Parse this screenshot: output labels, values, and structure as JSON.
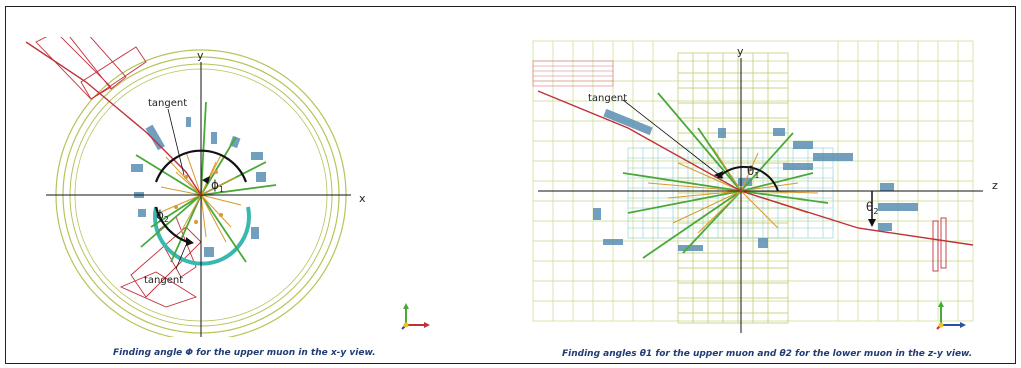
{
  "left_panel": {
    "axis_x": "x",
    "axis_y": "y",
    "tangent_top": "tangent",
    "tangent_bottom": "tangent",
    "phi1": "ϕ",
    "phi1_sub": "1",
    "phi2": "ϕ",
    "phi2_sub": "2",
    "caption": "Finding angle Φ for the upper muon in the x-y view."
  },
  "right_panel": {
    "axis_z": "z",
    "axis_y": "y",
    "tangent": "tangent",
    "theta1": "θ",
    "theta1_sub": "1",
    "theta2": "θ",
    "theta2_sub": "2",
    "caption": "Finding angles θ1 for the upper muon and θ2 for the lower muon in the z-y view."
  },
  "colors": {
    "muon": "#c0303a",
    "outer_ring": "#b8c35a",
    "inner_ring": "#3ab8b0",
    "tracks_orange": "#d79a2e",
    "tracks_green": "#4aa83a",
    "calo_blue": "#5b8fb3",
    "grid": "#c9d98a",
    "caption": "#1f3c73"
  }
}
